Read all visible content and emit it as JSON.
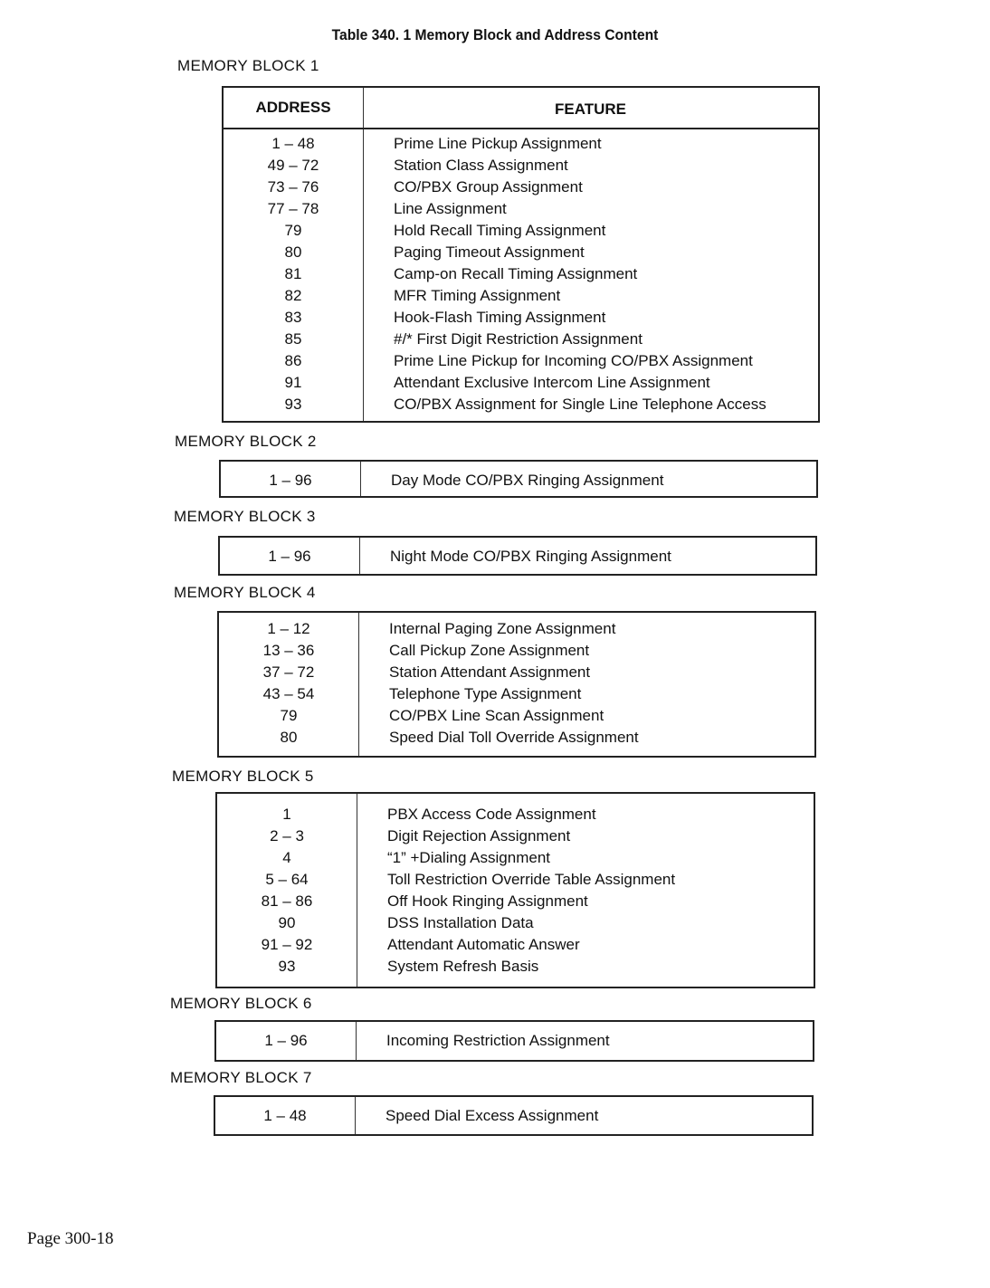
{
  "title": "Table 340. 1   Memory Block and Address Content",
  "headers": {
    "address": "ADDRESS",
    "feature": "FEATURE"
  },
  "blocks": [
    {
      "label": "MEMORY BLOCK 1",
      "rows": [
        [
          "1 – 48",
          "Prime Line Pickup Assignment"
        ],
        [
          "49 – 72",
          "Station Class Assignment"
        ],
        [
          "73 – 76",
          "CO/PBX Group Assignment"
        ],
        [
          "77 – 78",
          "Line Assignment"
        ],
        [
          "79",
          "Hold Recall Timing Assignment"
        ],
        [
          "80",
          "Paging Timeout Assignment"
        ],
        [
          "81",
          "Camp-on Recall Timing Assignment"
        ],
        [
          "82",
          "MFR Timing Assignment"
        ],
        [
          "83",
          "Hook-Flash Timing Assignment"
        ],
        [
          "85",
          "#/* First Digit Restriction Assignment"
        ],
        [
          "86",
          "Prime Line Pickup for Incoming CO/PBX Assignment"
        ],
        [
          "91",
          "Attendant Exclusive Intercom Line Assignment"
        ],
        [
          "93",
          "CO/PBX Assignment for Single Line Telephone Access"
        ]
      ]
    },
    {
      "label": "MEMORY BLOCK 2",
      "rows": [
        [
          "1 – 96",
          "Day Mode CO/PBX Ringing Assignment"
        ]
      ]
    },
    {
      "label": "MEMORY BLOCK 3",
      "rows": [
        [
          "1 – 96",
          "Night Mode CO/PBX Ringing Assignment"
        ]
      ]
    },
    {
      "label": "MEMORY BLOCK 4",
      "rows": [
        [
          "1 – 12",
          "Internal Paging Zone Assignment"
        ],
        [
          "13 – 36",
          "Call Pickup Zone Assignment"
        ],
        [
          "37 – 72",
          "Station Attendant Assignment"
        ],
        [
          "43 – 54",
          "Telephone Type Assignment"
        ],
        [
          "79",
          "CO/PBX Line Scan Assignment"
        ],
        [
          "80",
          "Speed Dial Toll Override Assignment"
        ]
      ]
    },
    {
      "label": "MEMORY BLOCK 5",
      "rows": [
        [
          "1",
          "PBX Access Code Assignment"
        ],
        [
          "2 – 3",
          "Digit Rejection Assignment"
        ],
        [
          "4",
          "“1” +Dialing Assignment"
        ],
        [
          "5 – 64",
          "Toll Restriction Override Table Assignment"
        ],
        [
          "81 – 86",
          "Off Hook Ringing Assignment"
        ],
        [
          "90",
          "DSS Installation Data"
        ],
        [
          "91 – 92",
          "Attendant Automatic Answer"
        ],
        [
          "93",
          "System Refresh Basis"
        ]
      ]
    },
    {
      "label": "MEMORY BLOCK 6",
      "rows": [
        [
          "1 – 96",
          "Incoming Restriction Assignment"
        ]
      ]
    },
    {
      "label": "MEMORY BLOCK 7",
      "rows": [
        [
          "1 – 48",
          "Speed Dial Excess Assignment"
        ]
      ]
    }
  ],
  "footer": "Page  300-18"
}
